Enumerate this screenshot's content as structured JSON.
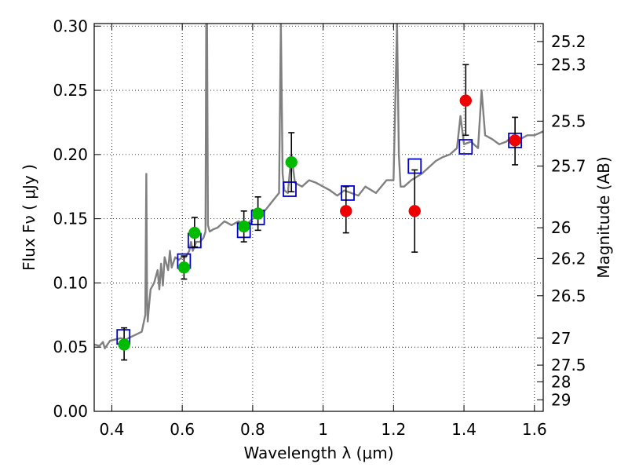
{
  "chart_data": {
    "type": "scatter",
    "xlabel": "Wavelength  λ (μm)",
    "ylabel": "Flux  Fν  ( μJy )",
    "ylabel_right": "Magnitude (AB)",
    "xlim": [
      0.35,
      1.625
    ],
    "ylim": [
      0.0,
      0.302
    ],
    "grid": true,
    "x_ticks": [
      0.4,
      0.6,
      0.8,
      1.0,
      1.2,
      1.4,
      1.6
    ],
    "x_tick_labels": [
      "0.4",
      "0.6",
      "0.8",
      "1",
      "1.2",
      "1.4",
      "1.6"
    ],
    "y_ticks": [
      0.0,
      0.05,
      0.1,
      0.15,
      0.2,
      0.25,
      0.3
    ],
    "y_tick_labels": [
      "0.00",
      "0.05",
      "0.10",
      "0.15",
      "0.20",
      "0.25",
      "0.30"
    ],
    "right_ticks": [
      {
        "flux": 0.288,
        "label": "25.2"
      },
      {
        "flux": 0.27,
        "label": "25.3"
      },
      {
        "flux": 0.226,
        "label": "25.5"
      },
      {
        "flux": 0.191,
        "label": "25.7"
      },
      {
        "flux": 0.143,
        "label": "26"
      },
      {
        "flux": 0.119,
        "label": "26.2"
      },
      {
        "flux": 0.09,
        "label": "26.5"
      },
      {
        "flux": 0.057,
        "label": "27"
      },
      {
        "flux": 0.036,
        "label": "27.5"
      },
      {
        "flux": 0.023,
        "label": "28"
      },
      {
        "flux": 0.009,
        "label": "29"
      }
    ],
    "colors": {
      "spectrum": "#808080",
      "model": "#0000cc",
      "green": "#00bb00",
      "red": "#ee0000",
      "errorbar": "#000000"
    },
    "series": [
      {
        "kind": "spectrum",
        "x": [
          0.35,
          0.365,
          0.375,
          0.38,
          0.395,
          0.41,
          0.425,
          0.44,
          0.455,
          0.47,
          0.485,
          0.495,
          0.498,
          0.5,
          0.502,
          0.505,
          0.51,
          0.52,
          0.53,
          0.535,
          0.54,
          0.545,
          0.55,
          0.56,
          0.565,
          0.57,
          0.58,
          0.59,
          0.6,
          0.61,
          0.62,
          0.625,
          0.63,
          0.64,
          0.65,
          0.66,
          0.666,
          0.668,
          0.67,
          0.673,
          0.678,
          0.69,
          0.7,
          0.72,
          0.74,
          0.76,
          0.78,
          0.8,
          0.82,
          0.84,
          0.86,
          0.875,
          0.88,
          0.885,
          0.89,
          0.9,
          0.91,
          0.92,
          0.94,
          0.96,
          0.98,
          1.0,
          1.02,
          1.04,
          1.06,
          1.08,
          1.1,
          1.12,
          1.15,
          1.18,
          1.2,
          1.21,
          1.215,
          1.22,
          1.23,
          1.25,
          1.28,
          1.3,
          1.32,
          1.34,
          1.36,
          1.38,
          1.39,
          1.4,
          1.42,
          1.44,
          1.45,
          1.46,
          1.48,
          1.5,
          1.52,
          1.54,
          1.56,
          1.58,
          1.6,
          1.625
        ],
        "y": [
          0.052,
          0.051,
          0.054,
          0.049,
          0.055,
          0.056,
          0.057,
          0.056,
          0.058,
          0.06,
          0.062,
          0.075,
          0.185,
          0.09,
          0.07,
          0.08,
          0.095,
          0.1,
          0.11,
          0.095,
          0.115,
          0.098,
          0.12,
          0.11,
          0.125,
          0.112,
          0.12,
          0.118,
          0.12,
          0.12,
          0.125,
          0.132,
          0.125,
          0.132,
          0.132,
          0.135,
          0.14,
          0.302,
          0.32,
          0.145,
          0.14,
          0.142,
          0.143,
          0.148,
          0.145,
          0.148,
          0.145,
          0.15,
          0.152,
          0.158,
          0.165,
          0.17,
          0.302,
          0.185,
          0.172,
          0.17,
          0.2,
          0.178,
          0.175,
          0.18,
          0.178,
          0.175,
          0.172,
          0.168,
          0.172,
          0.17,
          0.168,
          0.175,
          0.17,
          0.18,
          0.18,
          0.302,
          0.2,
          0.175,
          0.175,
          0.18,
          0.185,
          0.19,
          0.195,
          0.198,
          0.2,
          0.205,
          0.23,
          0.208,
          0.21,
          0.205,
          0.25,
          0.215,
          0.212,
          0.208,
          0.21,
          0.215,
          0.212,
          0.215,
          0.215,
          0.218
        ]
      },
      {
        "kind": "model",
        "x": [
          0.433,
          0.605,
          0.635,
          0.775,
          0.815,
          0.905,
          1.07,
          1.26,
          1.405,
          1.545
        ],
        "y": [
          0.058,
          0.117,
          0.133,
          0.141,
          0.151,
          0.173,
          0.17,
          0.191,
          0.206,
          0.211
        ]
      },
      {
        "kind": "observed",
        "color": "green",
        "x": [
          0.435,
          0.605,
          0.635,
          0.775,
          0.815,
          0.91
        ],
        "y": [
          0.052,
          0.112,
          0.139,
          0.144,
          0.154,
          0.194
        ],
        "err_low": [
          0.04,
          0.103,
          0.128,
          0.132,
          0.141,
          0.171
        ],
        "err_high": [
          0.065,
          0.121,
          0.151,
          0.156,
          0.167,
          0.217
        ]
      },
      {
        "kind": "observed",
        "color": "red",
        "x": [
          1.065,
          1.26,
          1.405,
          1.545
        ],
        "y": [
          0.156,
          0.156,
          0.242,
          0.211
        ],
        "err_low": [
          0.139,
          0.124,
          0.215,
          0.192
        ],
        "err_high": [
          0.175,
          0.188,
          0.27,
          0.229
        ]
      }
    ]
  }
}
